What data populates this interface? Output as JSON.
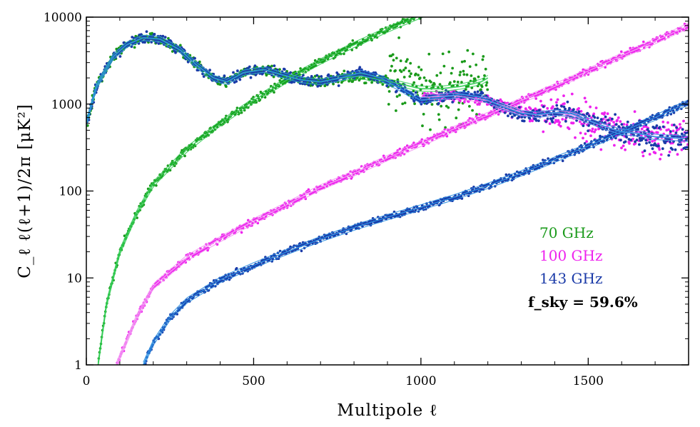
{
  "chart_data": {
    "type": "scatter",
    "title": "",
    "xlabel": "Multipole ℓ",
    "ylabel": "C_ℓ ℓ(ℓ+1)/2π [μK²]",
    "xlim": [
      0,
      1800
    ],
    "ylim": [
      1,
      10000
    ],
    "yscale": "log",
    "grid": false,
    "legend_position": "right-lower",
    "x_ticks": [
      0,
      500,
      1000,
      1500
    ],
    "x_tick_labels": [
      "0",
      "500",
      "1000",
      "1500"
    ],
    "y_ticks": [
      1,
      10,
      100,
      1000,
      10000
    ],
    "y_tick_labels": [
      "1",
      "10",
      "100",
      "1000",
      "10000"
    ],
    "annotation": "f_sky = 59.6%",
    "series": [
      {
        "name": "70 GHz",
        "color": "#1a9a1a",
        "fit_color": "#33cc55",
        "signal": {
          "x": [
            0,
            30,
            80,
            120,
            170,
            220,
            280,
            330,
            380,
            420,
            470,
            530,
            580,
            640,
            700,
            760,
            820,
            880,
            940,
            1000,
            1060,
            1120,
            1180,
            1200
          ],
          "y": [
            600,
            1600,
            3500,
            4800,
            5800,
            5600,
            4200,
            2800,
            2000,
            1800,
            2300,
            2500,
            2200,
            1900,
            1800,
            2000,
            2100,
            1900,
            1700,
            1500,
            1500,
            1600,
            1800,
            2000
          ]
        },
        "noise": {
          "x": [
            35,
            60,
            100,
            150,
            200,
            300,
            400,
            500,
            600,
            700,
            800,
            900,
            1000
          ],
          "y": [
            1,
            5,
            20,
            55,
            120,
            300,
            600,
            1100,
            1900,
            3100,
            4800,
            7200,
            10500
          ]
        }
      },
      {
        "name": "100 GHz",
        "color": "#ee22ee",
        "fit_color": "#f29af2",
        "signal": {
          "x": [
            1000,
            1100,
            1200,
            1300,
            1350,
            1400,
            1450,
            1500,
            1550,
            1600,
            1650,
            1700,
            1750,
            1800
          ],
          "y": [
            1200,
            1250,
            1100,
            800,
            750,
            800,
            750,
            650,
            550,
            480,
            460,
            420,
            410,
            400
          ]
        },
        "noise": {
          "x": [
            90,
            150,
            200,
            300,
            400,
            500,
            600,
            700,
            800,
            900,
            1000,
            1100,
            1200,
            1300,
            1400,
            1500,
            1600,
            1700,
            1800
          ],
          "y": [
            1,
            3.5,
            8,
            17,
            28,
            45,
            70,
            110,
            160,
            240,
            350,
            520,
            750,
            1100,
            1600,
            2400,
            3600,
            5300,
            8000
          ]
        }
      },
      {
        "name": "143 GHz",
        "color": "#1a3aa8",
        "fit_color": "#2a8ee0",
        "signal": {
          "x": [
            0,
            30,
            80,
            120,
            170,
            220,
            280,
            330,
            380,
            420,
            470,
            530,
            580,
            640,
            700,
            760,
            820,
            880,
            940,
            1000,
            1060,
            1120,
            1180,
            1240,
            1300,
            1350,
            1400,
            1450,
            1500,
            1550,
            1600,
            1650,
            1700,
            1750,
            1800
          ],
          "y": [
            600,
            1600,
            3500,
            4800,
            5800,
            5600,
            4200,
            2800,
            2000,
            1800,
            2300,
            2500,
            2200,
            1900,
            1800,
            2000,
            2300,
            2000,
            1500,
            1100,
            1200,
            1300,
            1200,
            950,
            780,
            760,
            800,
            780,
            650,
            550,
            480,
            460,
            420,
            410,
            400
          ]
        },
        "noise": {
          "x": [
            170,
            200,
            250,
            300,
            400,
            500,
            600,
            700,
            800,
            900,
            1000,
            1100,
            1200,
            1300,
            1400,
            1500,
            1600,
            1700,
            1800
          ],
          "y": [
            1,
            1.8,
            3.5,
            5.5,
            9.5,
            14,
            20,
            28,
            38,
            50,
            65,
            85,
            115,
            160,
            230,
            330,
            480,
            700,
            1050
          ]
        }
      }
    ]
  }
}
